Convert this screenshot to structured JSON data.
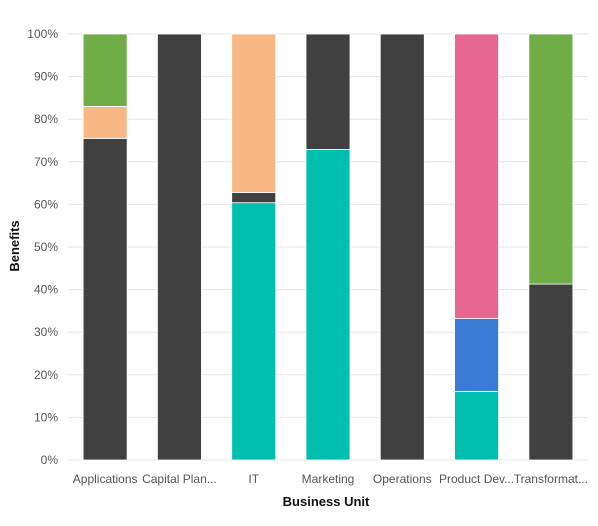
{
  "chart_data": {
    "type": "bar",
    "stacked": "percent",
    "xlabel": "Business Unit",
    "ylabel": "Benefits",
    "ylim": [
      0,
      100
    ],
    "y_ticks": [
      0,
      10,
      20,
      30,
      40,
      50,
      60,
      70,
      80,
      90,
      100
    ],
    "y_tick_suffix": "%",
    "grid": "horizontal",
    "categories": [
      "Applications",
      "Capital Plan...",
      "IT",
      "Marketing",
      "Operations",
      "Product Dev...",
      "Transformat..."
    ],
    "series": [
      {
        "color": "#01bfae",
        "values": [
          0,
          0,
          60.4,
          72.9,
          0,
          16.1,
          0
        ]
      },
      {
        "color": "#3a7bd5",
        "values": [
          0,
          0,
          0,
          0,
          0,
          17.1,
          0
        ]
      },
      {
        "color": "#404040",
        "values": [
          75.5,
          100,
          2.4,
          27.1,
          100,
          0,
          41.3
        ]
      },
      {
        "color": "#f8b885",
        "values": [
          7.5,
          0,
          37.2,
          0,
          0,
          0,
          0
        ]
      },
      {
        "color": "#e66591",
        "values": [
          0,
          0,
          0,
          0,
          0,
          66.8,
          0
        ]
      },
      {
        "color": "#70ad47",
        "values": [
          17.0,
          0,
          0,
          0,
          0,
          0,
          58.7
        ]
      }
    ]
  }
}
